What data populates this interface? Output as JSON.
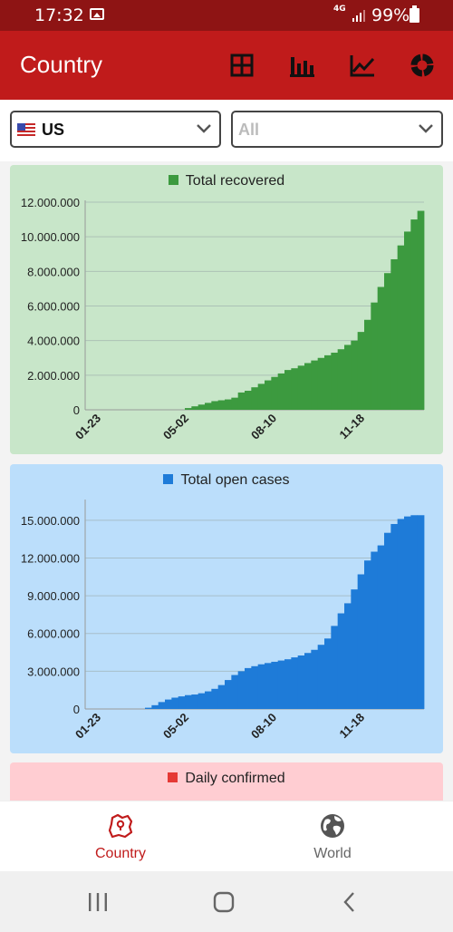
{
  "status_bar": {
    "time": "17:32",
    "network": "4G",
    "battery": "99%"
  },
  "app_bar": {
    "title": "Country",
    "actions": [
      "table-icon",
      "bar-chart-icon",
      "line-chart-icon",
      "donut-chart-icon"
    ]
  },
  "filters": {
    "country": {
      "flag": "us-flag",
      "value": "US"
    },
    "region": {
      "value": "All"
    }
  },
  "colors": {
    "app_bar": "#c01b1b",
    "status_bar": "#8e1414",
    "recovered_bar": "#3c9a3f",
    "recovered_bg": "#c8e6c9",
    "open_bar": "#1e7bd8",
    "open_bg": "#bbdefb",
    "confirmed_swatch": "#e53935",
    "confirmed_bg": "#ffcdd2"
  },
  "chart_data": [
    {
      "type": "bar",
      "legend": "Total recovered",
      "x_ticks": [
        "01-23",
        "05-02",
        "08-10",
        "11-18"
      ],
      "y_ticks": [
        "0",
        "2.000.000",
        "4.000.000",
        "6.000.000",
        "8.000.000",
        "10.000.000",
        "12.000.000"
      ],
      "ylim": [
        0,
        12000000
      ],
      "grid": true,
      "series": [
        {
          "values": [
            0,
            0,
            0,
            0,
            0,
            0,
            0,
            0,
            0,
            0,
            0,
            0,
            0,
            0,
            0,
            100000,
            200000,
            300000,
            400000,
            500000,
            550000,
            600000,
            700000,
            1000000,
            1100000,
            1300000,
            1500000,
            1700000,
            1900000,
            2100000,
            2300000,
            2400000,
            2550000,
            2700000,
            2850000,
            3000000,
            3150000,
            3300000,
            3500000,
            3750000,
            4000000,
            4500000,
            5200000,
            6200000,
            7100000,
            7900000,
            8700000,
            9500000,
            10300000,
            11000000,
            11500000
          ]
        }
      ]
    },
    {
      "type": "bar",
      "legend": "Total open cases",
      "x_ticks": [
        "01-23",
        "05-02",
        "08-10",
        "11-18"
      ],
      "y_ticks": [
        "0",
        "3.000.000",
        "6.000.000",
        "9.000.000",
        "12.000.000",
        "15.000.000"
      ],
      "ylim": [
        0,
        16500000
      ],
      "grid": true,
      "series": [
        {
          "values": [
            0,
            0,
            0,
            0,
            0,
            0,
            0,
            0,
            0,
            100000,
            300000,
            550000,
            750000,
            900000,
            1000000,
            1100000,
            1150000,
            1250000,
            1400000,
            1600000,
            1900000,
            2300000,
            2700000,
            3000000,
            3250000,
            3400000,
            3550000,
            3650000,
            3750000,
            3850000,
            3950000,
            4100000,
            4250000,
            4450000,
            4700000,
            5100000,
            5600000,
            6600000,
            7600000,
            8400000,
            9500000,
            10700000,
            11800000,
            12500000,
            13000000,
            14000000,
            14700000,
            15100000,
            15300000,
            15400000,
            15400000
          ]
        }
      ]
    },
    {
      "type": "bar",
      "legend": "Daily confirmed"
    }
  ],
  "bottom_nav": {
    "items": [
      {
        "label": "Country",
        "active": true
      },
      {
        "label": "World",
        "active": false
      }
    ]
  }
}
